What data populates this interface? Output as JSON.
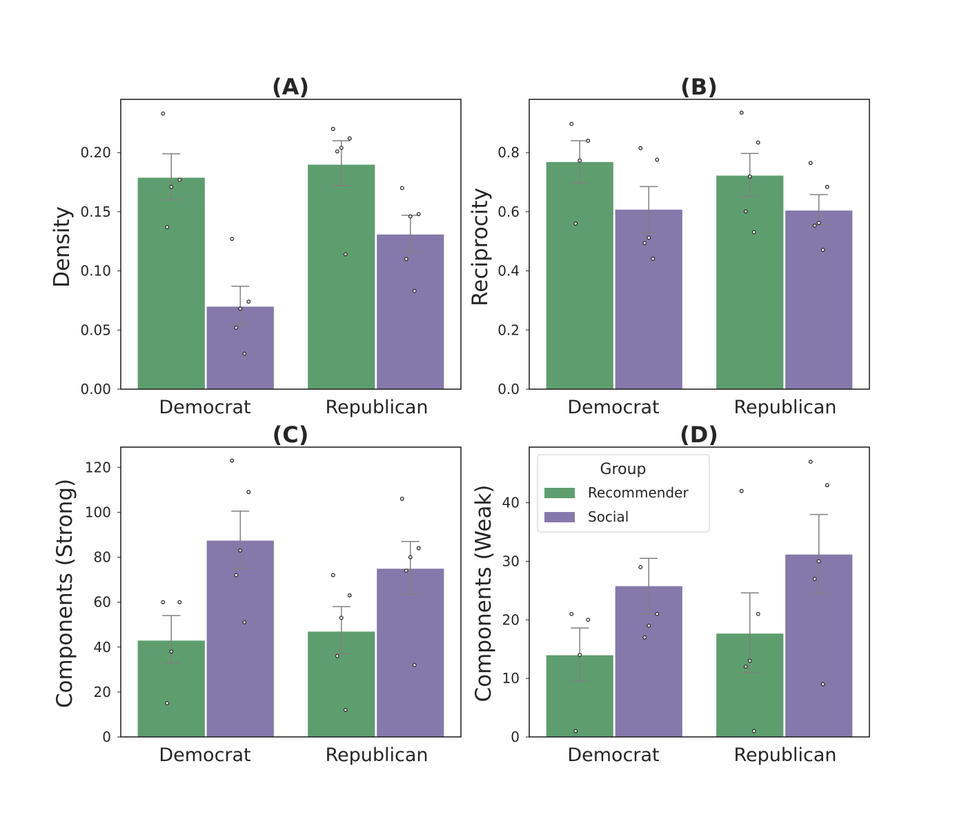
{
  "figure": {
    "colors": {
      "Recommender": "#5e9e6e",
      "Social": "#8579ab",
      "errorbar": "#808080",
      "frame": "#262626",
      "points": "#262626"
    }
  },
  "chart_data": [
    {
      "id": "A",
      "title": "(A)",
      "type": "bar",
      "ylabel": "Density",
      "categories": [
        "Democrat",
        "Republican"
      ],
      "ylim": [
        0,
        0.245
      ],
      "yticks": [
        0.0,
        0.05,
        0.1,
        0.15,
        0.2
      ],
      "yticklabels": [
        "0.00",
        "0.05",
        "0.10",
        "0.15",
        "0.20"
      ],
      "series": [
        {
          "name": "Recommender",
          "values": [
            0.179,
            0.19
          ],
          "err_low": [
            0.16,
            0.172
          ],
          "err_high": [
            0.199,
            0.21
          ],
          "points": [
            [
              0.233,
              0.177,
              0.171,
              0.137
            ],
            [
              0.22,
              0.212,
              0.204,
              0.201,
              0.114
            ]
          ]
        },
        {
          "name": "Social",
          "values": [
            0.07,
            0.131
          ],
          "err_low": [
            0.055,
            0.116
          ],
          "err_high": [
            0.087,
            0.147
          ],
          "points": [
            [
              0.127,
              0.074,
              0.068,
              0.052,
              0.03
            ],
            [
              0.17,
              0.148,
              0.146,
              0.11,
              0.083
            ]
          ]
        }
      ]
    },
    {
      "id": "B",
      "title": "(B)",
      "type": "bar",
      "ylabel": "Reciprocity",
      "categories": [
        "Democrat",
        "Republican"
      ],
      "ylim": [
        0,
        0.98
      ],
      "yticks": [
        0.0,
        0.2,
        0.4,
        0.6,
        0.8
      ],
      "yticklabels": [
        "0.0",
        "0.2",
        "0.4",
        "0.6",
        "0.8"
      ],
      "series": [
        {
          "name": "Recommender",
          "values": [
            0.769,
            0.723
          ],
          "err_low": [
            0.697,
            0.651
          ],
          "err_high": [
            0.84,
            0.797
          ],
          "points": [
            [
              0.897,
              0.84,
              0.773,
              0.56
            ],
            [
              0.935,
              0.834,
              0.719,
              0.601,
              0.531
            ]
          ]
        },
        {
          "name": "Social",
          "values": [
            0.608,
            0.605
          ],
          "err_low": [
            0.53,
            0.556
          ],
          "err_high": [
            0.685,
            0.658
          ],
          "points": [
            [
              0.815,
              0.776,
              0.512,
              0.494,
              0.441
            ],
            [
              0.765,
              0.684,
              0.562,
              0.553,
              0.471
            ]
          ]
        }
      ]
    },
    {
      "id": "C",
      "title": "(C)",
      "type": "bar",
      "ylabel": "Components (Strong)",
      "categories": [
        "Democrat",
        "Republican"
      ],
      "ylim": [
        0,
        129
      ],
      "yticks": [
        0,
        20,
        40,
        60,
        80,
        100,
        120
      ],
      "yticklabels": [
        "0",
        "20",
        "40",
        "60",
        "80",
        "100",
        "120"
      ],
      "series": [
        {
          "name": "Recommender",
          "values": [
            43,
            47
          ],
          "err_low": [
            33,
            37
          ],
          "err_high": [
            54,
            58
          ],
          "points": [
            [
              60,
              60,
              38,
              15
            ],
            [
              72,
              63,
              53,
              36,
              12
            ]
          ]
        },
        {
          "name": "Social",
          "values": [
            87.5,
            75
          ],
          "err_low": [
            75,
            63.5
          ],
          "err_high": [
            100.5,
            87
          ],
          "points": [
            [
              123,
              109,
              83,
              72,
              51
            ],
            [
              106,
              84,
              80,
              74,
              32
            ]
          ]
        }
      ]
    },
    {
      "id": "D",
      "title": "(D)",
      "type": "bar",
      "ylabel": "Components (Weak)",
      "categories": [
        "Democrat",
        "Republican"
      ],
      "ylim": [
        0,
        49.5
      ],
      "yticks": [
        0,
        10,
        20,
        30,
        40
      ],
      "yticklabels": [
        "0",
        "10",
        "20",
        "30",
        "40"
      ],
      "legend": {
        "title": "Group",
        "entries": [
          "Recommender",
          "Social"
        ],
        "loc": "upper-left"
      },
      "series": [
        {
          "name": "Recommender",
          "values": [
            14,
            17.7
          ],
          "err_low": [
            9.5,
            11
          ],
          "err_high": [
            18.6,
            24.6
          ],
          "points": [
            [
              21,
              20,
              14,
              1
            ],
            [
              42,
              21,
              13,
              12,
              1
            ]
          ]
        },
        {
          "name": "Social",
          "values": [
            25.8,
            31.2
          ],
          "err_low": [
            21,
            24.5
          ],
          "err_high": [
            30.5,
            38
          ],
          "points": [
            [
              29,
              21,
              19,
              17
            ],
            [
              47,
              43,
              30,
              27,
              9
            ]
          ]
        }
      ]
    }
  ]
}
